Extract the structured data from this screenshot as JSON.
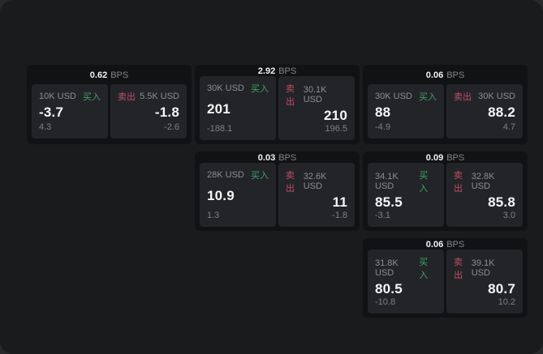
{
  "labels": {
    "bps": "BPS",
    "buy": "买入",
    "sell": "卖出"
  },
  "colors": {
    "outer_background": "#28292b",
    "window_background": "#1a1b1d",
    "card_background": "#111213",
    "panel_background": "#232427",
    "buy_green": "#3da56b",
    "sell_red": "#c04f66"
  },
  "cards": [
    {
      "bps": "0.62",
      "buy": {
        "amount": "10K USD",
        "value": "-3.7",
        "sub": "4.3"
      },
      "sell": {
        "amount": "5.5K USD",
        "value": "-1.8",
        "sub": "-2.6"
      }
    },
    {
      "bps": "2.92",
      "buy": {
        "amount": "30K USD",
        "value": "201",
        "sub": "-188.1"
      },
      "sell": {
        "amount": "30.1K USD",
        "value": "210",
        "sub": "196.5"
      }
    },
    {
      "bps": "0.06",
      "buy": {
        "amount": "30K USD",
        "value": "88",
        "sub": "-4.9"
      },
      "sell": {
        "amount": "30K USD",
        "value": "88.2",
        "sub": "4.7"
      }
    },
    {
      "bps": "0.03",
      "buy": {
        "amount": "28K USD",
        "value": "10.9",
        "sub": "1.3"
      },
      "sell": {
        "amount": "32.6K USD",
        "value": "11",
        "sub": "-1.8"
      }
    },
    {
      "bps": "0.09",
      "buy": {
        "amount": "34.1K USD",
        "value": "85.5",
        "sub": "-3.1"
      },
      "sell": {
        "amount": "32.8K USD",
        "value": "85.8",
        "sub": "3.0"
      }
    },
    {
      "bps": "0.06",
      "buy": {
        "amount": "31.8K USD",
        "value": "80.5",
        "sub": "-10.8"
      },
      "sell": {
        "amount": "39.1K USD",
        "value": "80.7",
        "sub": "10.2"
      }
    }
  ]
}
